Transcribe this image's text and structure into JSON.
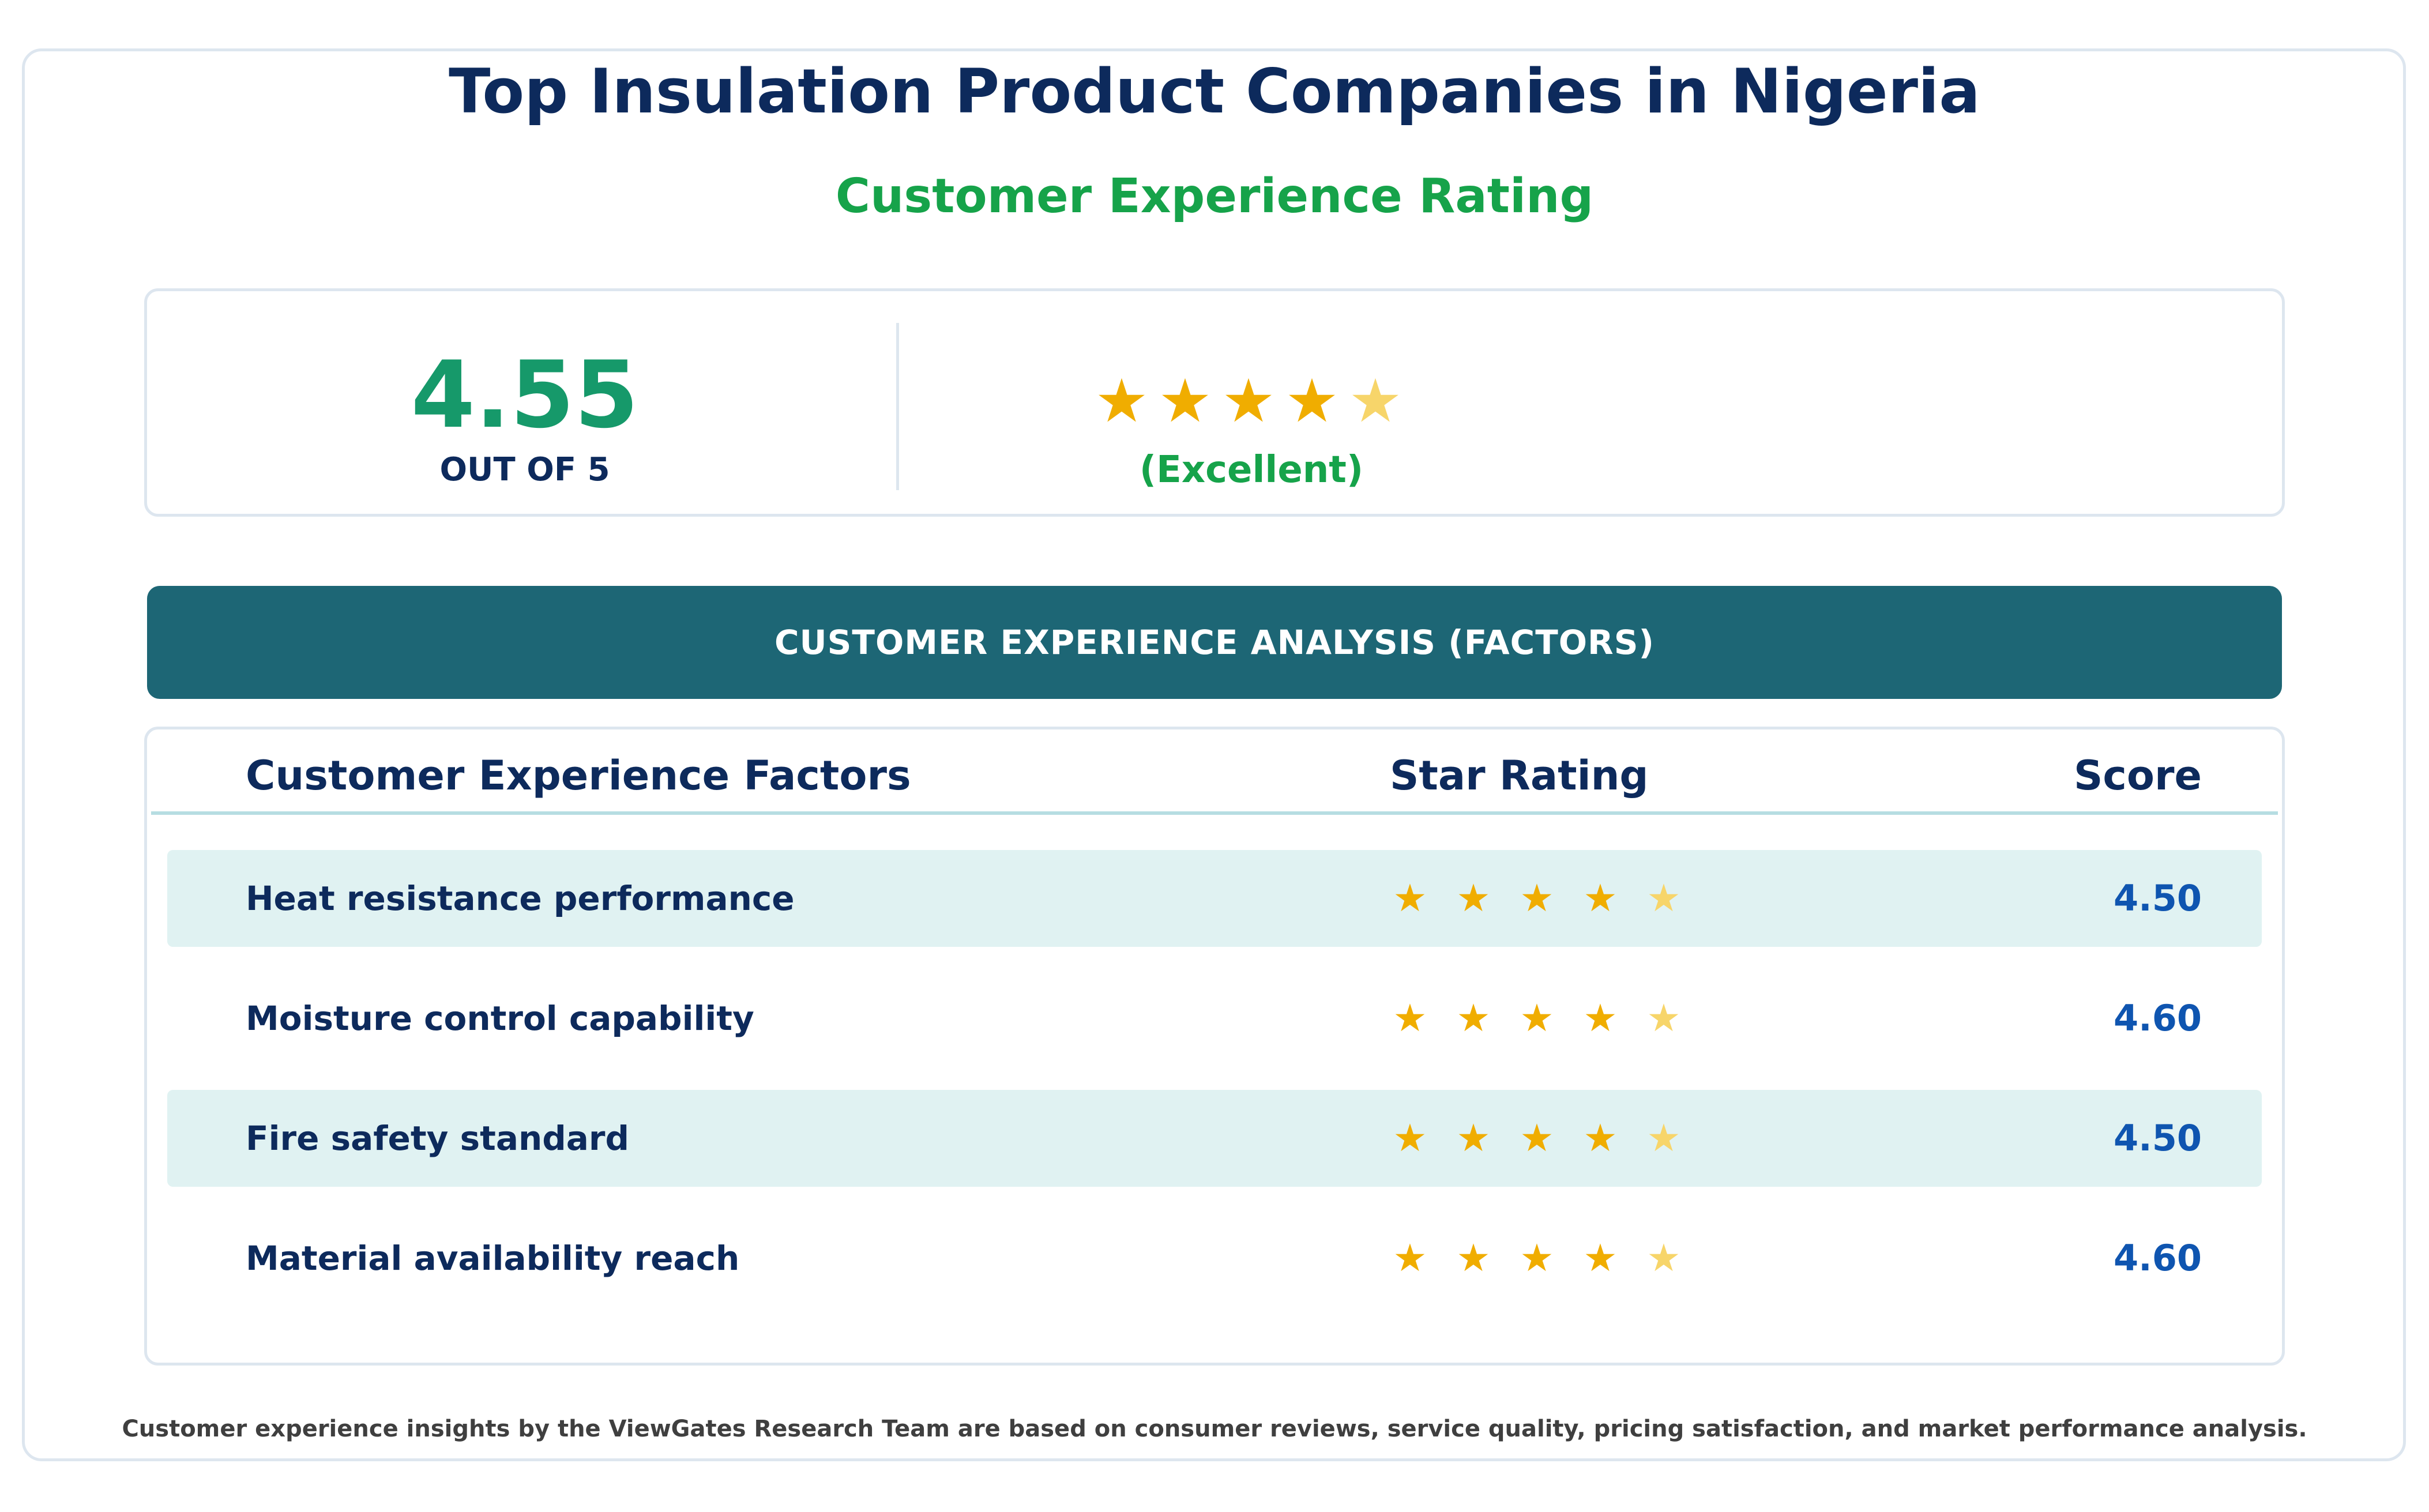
{
  "header": {
    "title": "Top Insulation Product Companies in Nigeria",
    "subtitle": "Customer Experience Rating"
  },
  "summary": {
    "score": "4.55",
    "out_of": "OUT OF 5",
    "rating_word": "(Excellent)",
    "stars_value": 4.55,
    "star_glyph": "★"
  },
  "banner": {
    "label": "CUSTOMER EXPERIENCE ANALYSIS (FACTORS)"
  },
  "table": {
    "headers": {
      "factor": "Customer Experience Factors",
      "stars": "Star Rating",
      "score": "Score"
    },
    "rows": [
      {
        "factor": "Heat resistance performance",
        "score": "4.50",
        "rating": 4.5
      },
      {
        "factor": "Moisture control capability",
        "score": "4.60",
        "rating": 4.6
      },
      {
        "factor": "Fire safety standard",
        "score": "4.50",
        "rating": 4.5
      },
      {
        "factor": "Material availability reach",
        "score": "4.60",
        "rating": 4.6
      }
    ]
  },
  "footer": {
    "note": "Customer experience insights by the ViewGates Research Team are based on consumer reviews, service quality, pricing satisfaction, and market performance analysis."
  },
  "colors": {
    "title": "#0d2a5c",
    "accent_green": "#16a34a",
    "banner": "#1d6675",
    "star_full": "#f0ad00",
    "star_partial": "#f7d56a",
    "score_blue": "#0f55b0",
    "row_shade": "#e0f2f2"
  }
}
